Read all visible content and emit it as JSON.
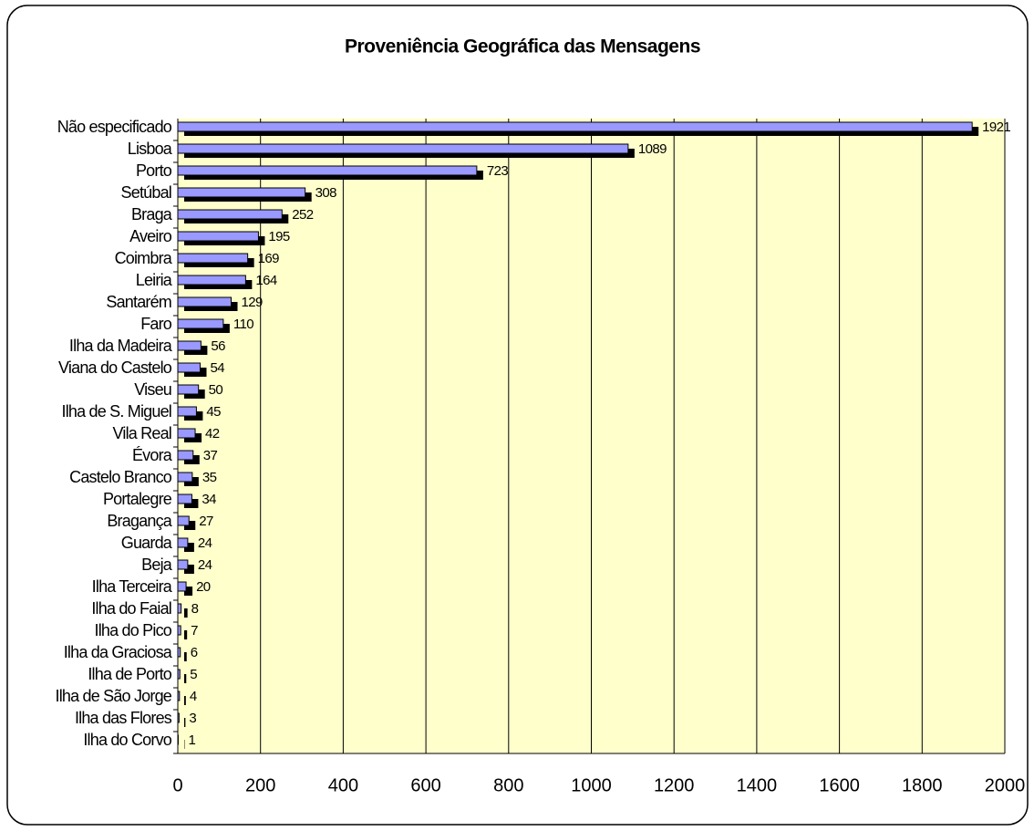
{
  "chart_data": {
    "type": "bar",
    "orientation": "horizontal",
    "title": "Proveniência Geográfica das Mensagens",
    "categories": [
      "Não especificado",
      "Lisboa",
      "Porto",
      "Setúbal",
      "Braga",
      "Aveiro",
      "Coimbra",
      "Leiria",
      "Santarém",
      "Faro",
      "Ilha da Madeira",
      "Viana do Castelo",
      "Viseu",
      "Ilha de S. Miguel",
      "Vila Real",
      "Évora",
      "Castelo Branco",
      "Portalegre",
      "Bragança",
      "Guarda",
      "Beja",
      "Ilha Terceira",
      "Ilha do Faial",
      "Ilha do Pico",
      "Ilha da Graciosa",
      "Ilha de Porto",
      "Ilha de São Jorge",
      "Ilha das Flores",
      "Ilha do Corvo"
    ],
    "values": [
      1921,
      1089,
      723,
      308,
      252,
      195,
      169,
      164,
      129,
      110,
      56,
      54,
      50,
      45,
      42,
      37,
      35,
      34,
      27,
      24,
      24,
      20,
      8,
      7,
      6,
      5,
      4,
      3,
      1
    ],
    "color": "#9999ff",
    "shadow_color": "#000000",
    "background": "#ffffcc",
    "xlim": [
      0,
      2000
    ],
    "xticks": [
      0,
      200,
      400,
      600,
      800,
      1000,
      1200,
      1400,
      1600,
      1800,
      2000
    ],
    "grid": true
  }
}
